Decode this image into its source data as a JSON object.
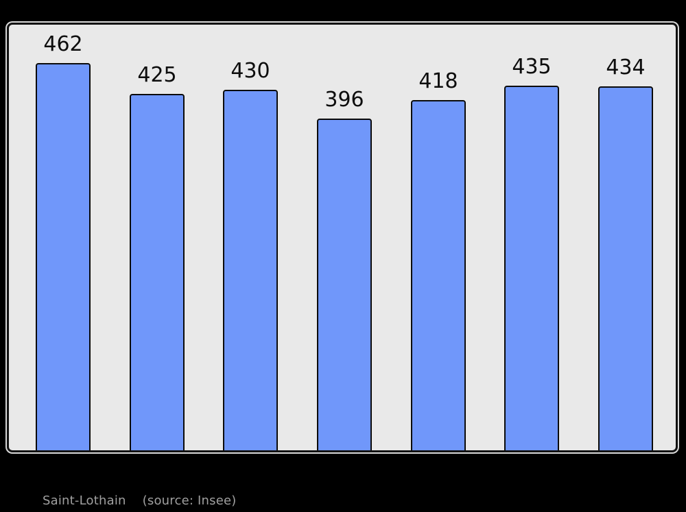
{
  "page": {
    "background": "#000000"
  },
  "chart_data": {
    "type": "bar",
    "values": [
      462,
      425,
      430,
      396,
      418,
      435,
      434
    ],
    "data_labels": [
      "462",
      "425",
      "430",
      "396",
      "418",
      "435",
      "434"
    ],
    "categories": [
      "",
      "",
      "",
      "",
      "",
      "",
      ""
    ],
    "title": "",
    "xlabel": "",
    "ylabel": "",
    "ylim": [
      0,
      506
    ],
    "grid": false,
    "legend": false,
    "bar_color": "#7097fa",
    "bar_border_color": "#0a0a0a",
    "label_color": "#0d0d0d",
    "plot_background": "#e9e9e9",
    "plot_border_color": "#121212"
  },
  "caption": {
    "name": "Saint-Lothain",
    "source": "(source: Insee)",
    "color": "#a0a0a0"
  }
}
